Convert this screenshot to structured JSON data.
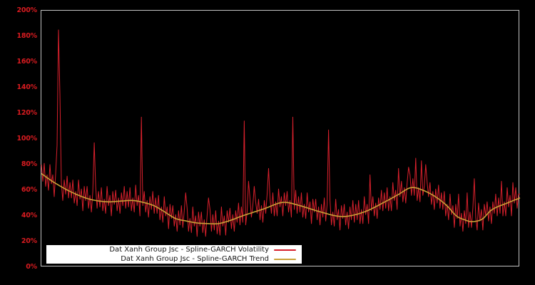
{
  "window": {
    "background": "#000000"
  },
  "chart_data": {
    "type": "line",
    "title": "",
    "xlabel": "",
    "ylabel": "",
    "ylim": [
      0,
      200
    ],
    "ytick_values": [
      0,
      20,
      40,
      60,
      80,
      100,
      120,
      140,
      160,
      180,
      200
    ],
    "ytick_labels": [
      "0%",
      "20%",
      "40%",
      "60%",
      "80%",
      "100%",
      "120%",
      "140%",
      "160%",
      "180%",
      "200%"
    ],
    "x_axis_labels_visible": false,
    "grid": false,
    "legend_position": "bottom-left",
    "plot_background": "#000000",
    "axis_frame_color": "#c4c4c4",
    "tick_label_color": "#d81b20",
    "series": [
      {
        "name": "Dat Xanh Group Jsc - Spline-GARCH Volatility",
        "color": "#d7202c",
        "style": "noisy",
        "values": [
          80,
          67,
          81,
          63,
          72,
          60,
          80,
          65,
          72,
          55,
          73,
          95,
          185,
          135,
          66,
          52,
          68,
          57,
          71,
          54,
          66,
          54,
          68,
          50,
          59,
          48,
          68,
          53,
          61,
          44,
          63,
          52,
          63,
          46,
          56,
          43,
          59,
          97,
          63,
          46,
          59,
          47,
          62,
          44,
          53,
          42,
          63,
          48,
          56,
          40,
          59,
          49,
          60,
          44,
          54,
          42,
          58,
          48,
          63,
          46,
          59,
          47,
          62,
          44,
          54,
          43,
          64,
          48,
          56,
          40,
          117,
          48,
          59,
          43,
          52,
          39,
          55,
          45,
          59,
          42,
          54,
          42,
          56,
          37,
          47,
          35,
          55,
          40,
          47,
          30,
          49,
          38,
          48,
          32,
          41,
          28,
          44,
          33,
          48,
          31,
          44,
          58,
          46,
          28,
          38,
          27,
          47,
          32,
          40,
          24,
          43,
          32,
          43,
          27,
          37,
          24,
          40,
          54,
          45,
          28,
          41,
          29,
          44,
          26,
          36,
          25,
          47,
          32,
          40,
          25,
          44,
          35,
          46,
          30,
          41,
          28,
          44,
          35,
          50,
          33,
          47,
          35,
          114,
          33,
          43,
          67,
          54,
          39,
          48,
          63,
          51,
          42,
          53,
          37,
          48,
          35,
          52,
          42,
          57,
          77,
          54,
          42,
          58,
          40,
          51,
          40,
          61,
          47,
          55,
          40,
          58,
          48,
          59,
          43,
          52,
          39,
          117,
          45,
          60,
          42,
          55,
          43,
          58,
          39,
          49,
          38,
          58,
          43,
          51,
          34,
          53,
          43,
          53,
          37,
          47,
          33,
          49,
          39,
          54,
          36,
          49,
          107,
          52,
          33,
          43,
          32,
          53,
          37,
          45,
          29,
          48,
          38,
          49,
          33,
          43,
          30,
          47,
          37,
          52,
          35,
          49,
          37,
          52,
          34,
          45,
          34,
          55,
          41,
          49,
          34,
          72,
          44,
          55,
          40,
          50,
          38,
          54,
          45,
          60,
          44,
          58,
          46,
          62,
          44,
          55,
          44,
          66,
          52,
          60,
          45,
          77,
          55,
          67,
          51,
          62,
          50,
          66,
          78,
          72,
          56,
          69,
          56,
          85,
          52,
          62,
          51,
          83,
          56,
          63,
          80,
          66,
          55,
          66,
          49,
          59,
          45,
          61,
          50,
          64,
          46,
          58,
          45,
          59,
          40,
          49,
          37,
          57,
          41,
          48,
          31,
          49,
          38,
          57,
          32,
          42,
          28,
          44,
          34,
          58,
          31,
          43,
          31,
          46,
          69,
          39,
          29,
          50,
          36,
          45,
          29,
          49,
          40,
          51,
          36,
          47,
          34,
          51,
          42,
          57,
          40,
          54,
          42,
          67,
          40,
          51,
          40,
          62,
          47,
          56,
          40,
          66,
          50,
          62,
          46,
          57,
          57
        ]
      },
      {
        "name": "Dat Xanh Group Jsc - Spline-GARCH Trend",
        "color": "#c9a136",
        "style": "smooth",
        "control_points": [
          [
            0.0,
            73
          ],
          [
            0.027,
            66
          ],
          [
            0.063,
            58.5
          ],
          [
            0.101,
            53
          ],
          [
            0.137,
            51
          ],
          [
            0.164,
            51.5
          ],
          [
            0.191,
            52
          ],
          [
            0.213,
            50.5
          ],
          [
            0.235,
            48
          ],
          [
            0.258,
            43
          ],
          [
            0.28,
            38
          ],
          [
            0.303,
            36
          ],
          [
            0.325,
            34.5
          ],
          [
            0.347,
            34
          ],
          [
            0.37,
            34
          ],
          [
            0.395,
            36.5
          ],
          [
            0.42,
            40
          ],
          [
            0.465,
            45.5
          ],
          [
            0.504,
            50.5
          ],
          [
            0.54,
            48
          ],
          [
            0.584,
            43
          ],
          [
            0.629,
            39.5
          ],
          [
            0.674,
            43
          ],
          [
            0.718,
            51
          ],
          [
            0.745,
            56.5
          ],
          [
            0.772,
            62
          ],
          [
            0.797,
            60
          ],
          [
            0.823,
            55
          ],
          [
            0.847,
            48
          ],
          [
            0.867,
            40
          ],
          [
            0.884,
            37
          ],
          [
            0.9,
            35.5
          ],
          [
            0.921,
            37.5
          ],
          [
            0.942,
            45
          ],
          [
            0.973,
            50
          ],
          [
            1.0,
            54
          ]
        ]
      }
    ]
  },
  "legend": {
    "background": "#ffffff",
    "text_color": "#141414"
  }
}
